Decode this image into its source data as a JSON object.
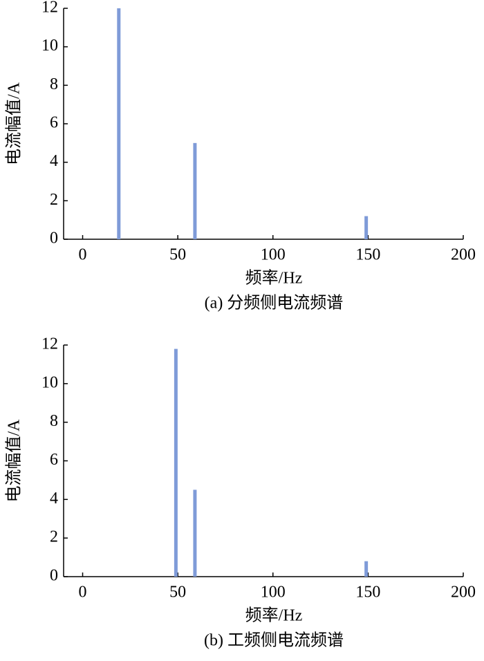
{
  "chart_data": [
    {
      "type": "bar",
      "caption": "(a)  分频侧电流频谱",
      "x_label": "频率/Hz",
      "y_label": "电流幅值/A",
      "x": [
        19,
        59,
        149
      ],
      "values": [
        12,
        5,
        1.2
      ],
      "color": "#7f9bd8",
      "xlim": [
        -10,
        200
      ],
      "ylim": [
        0,
        12
      ],
      "xticks": [
        0,
        50,
        100,
        150,
        200
      ],
      "yticks": [
        0,
        2,
        4,
        6,
        8,
        10,
        12
      ]
    },
    {
      "type": "bar",
      "caption": "(b)  工频侧电流频谱",
      "x_label": "频率/Hz",
      "y_label": "电流幅值/A",
      "x": [
        49,
        59,
        149
      ],
      "values": [
        11.8,
        4.5,
        0.8
      ],
      "color": "#7f9bd8",
      "xlim": [
        -10,
        200
      ],
      "ylim": [
        0,
        12
      ],
      "xticks": [
        0,
        50,
        100,
        150,
        200
      ],
      "yticks": [
        0,
        2,
        4,
        6,
        8,
        10,
        12
      ]
    }
  ]
}
